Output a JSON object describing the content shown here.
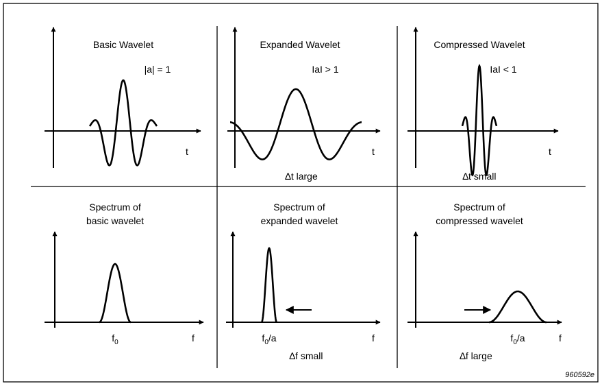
{
  "wavelets": [
    {
      "title": "Basic Wavelet",
      "scale_label": "|a| = 1",
      "axis_label": "t"
    },
    {
      "title": "Expanded Wavelet",
      "scale_label": "IaI > 1",
      "axis_label": "t",
      "width_label": "∆t large"
    },
    {
      "title": "Compressed Wavelet",
      "scale_label": "IaI < 1",
      "axis_label": "t",
      "width_label": "∆t small"
    }
  ],
  "spectra": [
    {
      "title_lines": [
        "Spectrum of",
        "basic wavelet"
      ],
      "freq_label": {
        "base": "f",
        "sub": "0"
      },
      "axis_label": "f"
    },
    {
      "title_lines": [
        "Spectrum of",
        "expanded wavelet"
      ],
      "freq_label": {
        "base": "f",
        "sub": "0",
        "suffix": "/a"
      },
      "axis_label": "f",
      "width_label": "∆f small"
    },
    {
      "title_lines": [
        "Spectrum of",
        "compressed wavelet"
      ],
      "freq_label": {
        "base": "f",
        "sub": "0",
        "suffix": "/a"
      },
      "axis_label": "f",
      "width_label": "∆f large"
    }
  ],
  "figure_id": "960592e"
}
